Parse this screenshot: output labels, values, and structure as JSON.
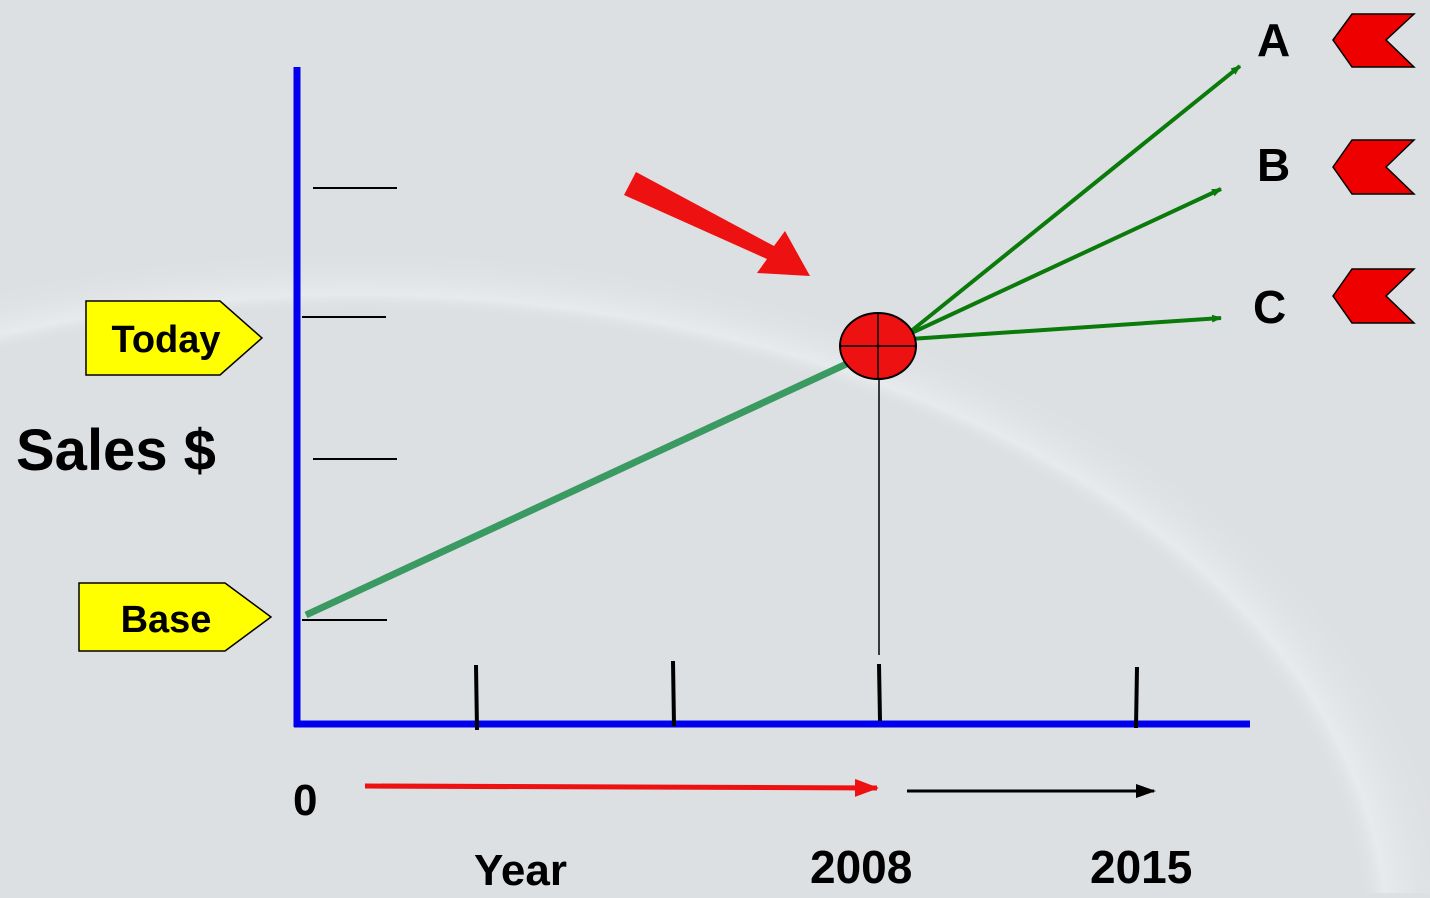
{
  "labels": {
    "sales": "Sales $",
    "today": "Today",
    "base": "Base",
    "zero": "0",
    "year": "Year",
    "year_2008": "2008",
    "year_2015": "2015"
  },
  "scenarios": [
    {
      "letter": "A"
    },
    {
      "letter": "B"
    },
    {
      "letter": "C"
    }
  ],
  "colors": {
    "axis": "#0000ee",
    "trend": "#3a9a62",
    "projection": "#0a7a0a",
    "marker": "#ee1111",
    "callout": "#ffff00",
    "flag": "#ee0000",
    "background": "#dde0e3"
  }
}
